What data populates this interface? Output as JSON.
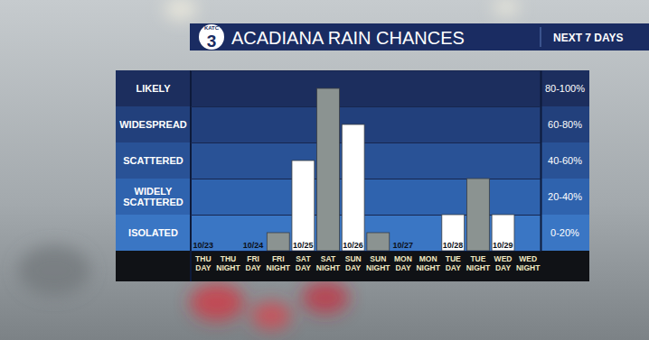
{
  "chart_data": {
    "type": "bar",
    "title": "ACADIANA RAIN CHANCES",
    "subtitle": "NEXT 7 DAYS",
    "logo": [
      "KATC",
      "3"
    ],
    "categories": [
      "THU DAY",
      "THU NIGHT",
      "FRI DAY",
      "FRI NIGHT",
      "SAT DAY",
      "SAT NIGHT",
      "SUN DAY",
      "SUN NIGHT",
      "MON DAY",
      "MON NIGHT",
      "TUE DAY",
      "TUE NIGHT",
      "WED DAY",
      "WED NIGHT"
    ],
    "values": [
      0,
      0,
      0,
      10,
      50,
      90,
      70,
      10,
      0,
      0,
      20,
      40,
      20,
      0
    ],
    "colors": [
      "#ffffff",
      "#8b9391",
      "#ffffff",
      "#8b9391",
      "#ffffff",
      "#8b9391",
      "#ffffff",
      "#8b9391",
      "#ffffff",
      "#8b9391",
      "#ffffff",
      "#8b9391",
      "#ffffff",
      "#8b9391"
    ],
    "dates": [
      "10/23",
      null,
      "10/24",
      null,
      "10/25",
      null,
      "10/26",
      null,
      "10/27",
      null,
      "10/28",
      null,
      "10/29",
      null
    ],
    "ylim": [
      0,
      100
    ],
    "yticks": [
      0,
      20,
      40,
      60,
      80,
      100
    ],
    "bands": [
      {
        "from": 80,
        "to": 100,
        "label": "LIKELY",
        "range_label": "80-100%"
      },
      {
        "from": 60,
        "to": 80,
        "label": "WIDESPREAD",
        "range_label": "60-80%"
      },
      {
        "from": 40,
        "to": 60,
        "label": "SCATTERED",
        "range_label": "40-60%"
      },
      {
        "from": 20,
        "to": 40,
        "label": "WIDELY SCATTERED",
        "range_label": "20-40%"
      },
      {
        "from": 0,
        "to": 20,
        "label": "ISOLATED",
        "range_label": "0-20%"
      }
    ],
    "grid": true,
    "tick_labels": "x"
  }
}
